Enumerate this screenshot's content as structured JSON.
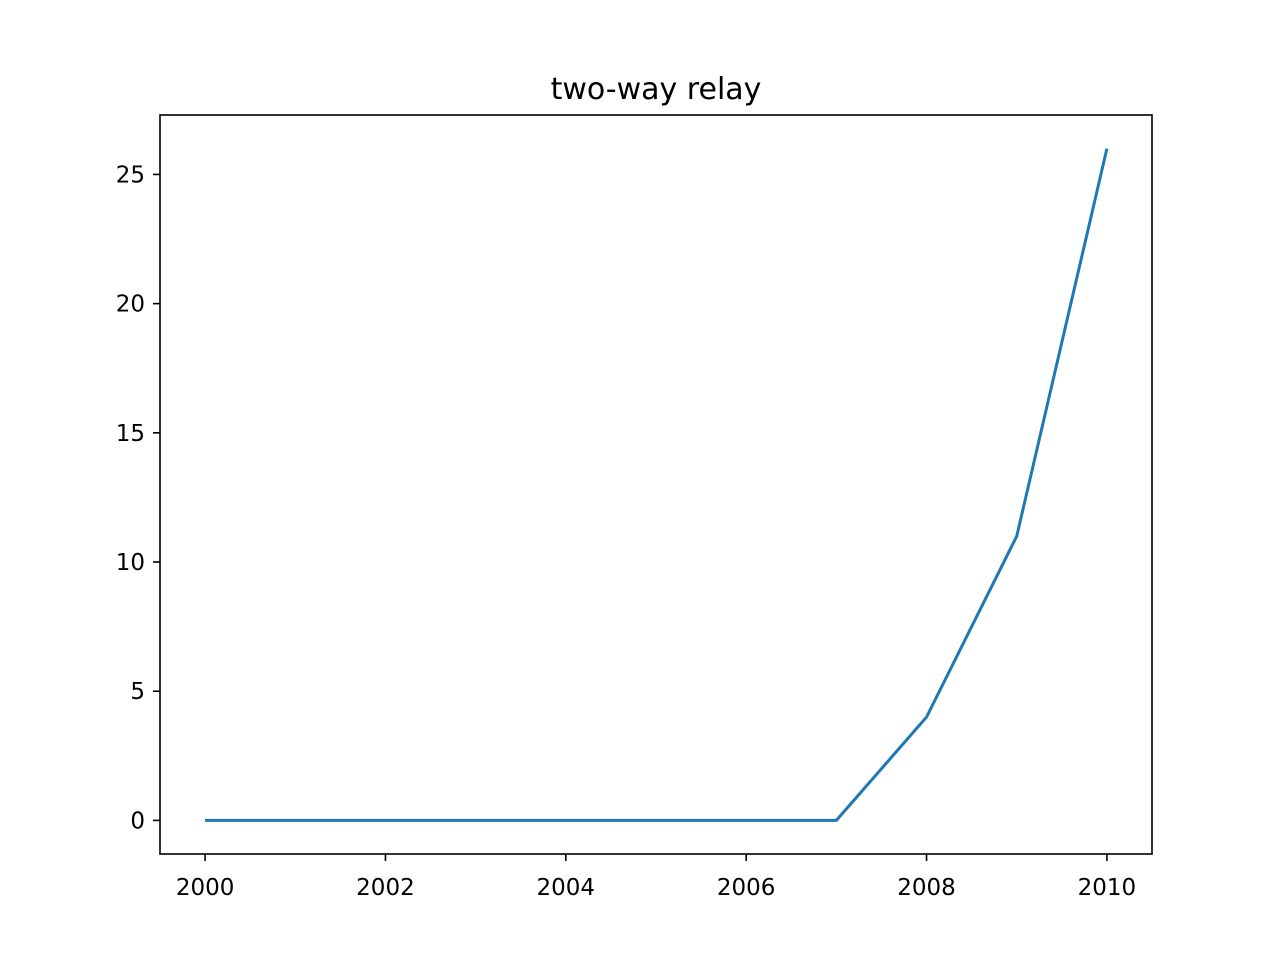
{
  "chart_data": {
    "type": "line",
    "title": "two-way relay",
    "xlabel": "",
    "ylabel": "",
    "x": [
      2000,
      2001,
      2002,
      2003,
      2004,
      2005,
      2006,
      2007,
      2008,
      2009,
      2010
    ],
    "series": [
      {
        "values": [
          0,
          0,
          0,
          0,
          0,
          0,
          0,
          0,
          4,
          11,
          26
        ],
        "color": "#1f77b4"
      }
    ],
    "xlim": [
      1999.5,
      2010.5
    ],
    "ylim": [
      -1.3,
      27.3
    ],
    "x_ticks": [
      2000,
      2002,
      2004,
      2006,
      2008,
      2010
    ],
    "y_ticks": [
      0,
      5,
      10,
      15,
      20,
      25
    ],
    "grid": false,
    "legend": "none"
  }
}
